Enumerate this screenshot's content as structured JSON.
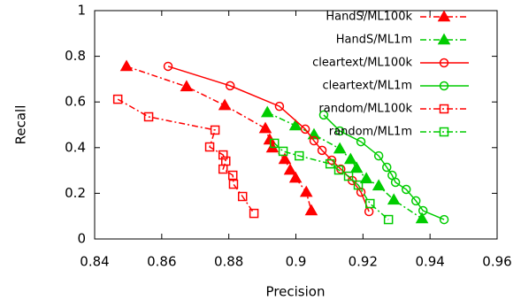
{
  "chart_data": {
    "type": "line",
    "x_label": "Precision",
    "y_label": "Recall",
    "xlim": [
      0.84,
      0.96
    ],
    "xticks": [
      0.84,
      0.86,
      0.88,
      0.9,
      0.92,
      0.94,
      0.96
    ],
    "ylim": [
      0,
      1
    ],
    "yticks": [
      0,
      0.2,
      0.4,
      0.6,
      0.8,
      1
    ],
    "legend": "upper right",
    "grid": false,
    "series": [
      {
        "name": "HandS/ML100k",
        "color": "#ff0000",
        "marker": "filled-triangle",
        "dash": "dash-dot",
        "x": [
          0.8495,
          0.8674,
          0.8788,
          0.8909,
          0.8922,
          0.893,
          0.8967,
          0.8983,
          0.8999,
          0.9031,
          0.9046
        ],
        "values": [
          0.756,
          0.667,
          0.585,
          0.484,
          0.434,
          0.399,
          0.349,
          0.302,
          0.267,
          0.205,
          0.124
        ]
      },
      {
        "name": "HandS/ML1m",
        "color": "#00cc00",
        "marker": "filled-triangle",
        "dash": "dash-dot",
        "x": [
          0.8915,
          0.8999,
          0.9054,
          0.9131,
          0.9163,
          0.9181,
          0.921,
          0.9247,
          0.9292,
          0.9376
        ],
        "values": [
          0.554,
          0.496,
          0.457,
          0.395,
          0.349,
          0.31,
          0.264,
          0.233,
          0.171,
          0.089
        ]
      },
      {
        "name": "cleartext/ML100k",
        "color": "#ff0000",
        "marker": "open-circle",
        "dash": "solid",
        "x": [
          0.8619,
          0.8804,
          0.8951,
          0.9028,
          0.9054,
          0.9078,
          0.9107,
          0.9134,
          0.9168,
          0.9194,
          0.9218
        ],
        "values": [
          0.756,
          0.671,
          0.581,
          0.481,
          0.43,
          0.388,
          0.345,
          0.306,
          0.256,
          0.205,
          0.12
        ]
      },
      {
        "name": "cleartext/ML1m",
        "color": "#00cc00",
        "marker": "open-circle",
        "dash": "solid",
        "x": [
          0.9083,
          0.9131,
          0.9194,
          0.9247,
          0.9271,
          0.9287,
          0.9297,
          0.9329,
          0.9358,
          0.9379,
          0.9442
        ],
        "values": [
          0.543,
          0.473,
          0.426,
          0.364,
          0.314,
          0.279,
          0.248,
          0.217,
          0.167,
          0.124,
          0.085
        ]
      },
      {
        "name": "random/ML100k",
        "color": "#ff0000",
        "marker": "open-square",
        "dash": "dash-dot",
        "x": [
          0.8469,
          0.8561,
          0.8759,
          0.8743,
          0.8783,
          0.8791,
          0.8783,
          0.8812,
          0.8814,
          0.8841,
          0.8875
        ],
        "values": [
          0.612,
          0.535,
          0.477,
          0.403,
          0.368,
          0.341,
          0.306,
          0.279,
          0.24,
          0.186,
          0.112
        ]
      },
      {
        "name": "random/ML1m",
        "color": "#00cc00",
        "marker": "open-square",
        "dash": "dash-dot",
        "x": [
          0.8936,
          0.8962,
          0.901,
          0.9102,
          0.9128,
          0.9157,
          0.9186,
          0.9221,
          0.9276
        ],
        "values": [
          0.419,
          0.384,
          0.364,
          0.329,
          0.302,
          0.275,
          0.236,
          0.155,
          0.085
        ]
      }
    ]
  }
}
